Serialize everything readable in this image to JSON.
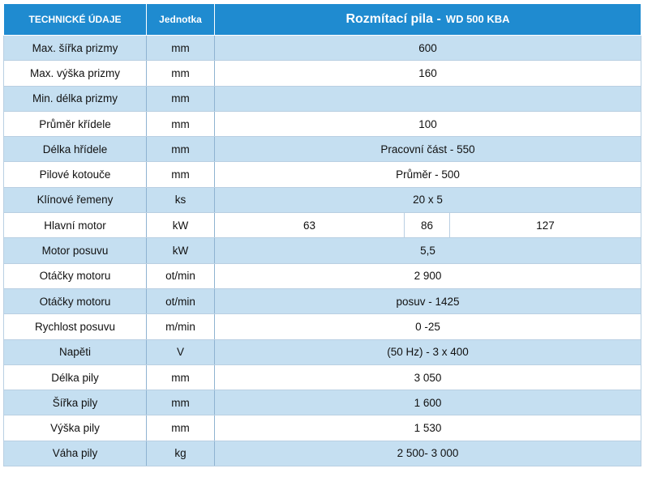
{
  "header": {
    "col_param": "TECHNICKÉ ÚDAJE",
    "col_unit": "Jednotka",
    "col_value_title": "Rozmítací pila -",
    "col_value_model": "WD 500 KBA"
  },
  "rows": [
    {
      "param": "Max. šířka prizmy",
      "unit": "mm",
      "value": "600"
    },
    {
      "param": "Max. výška prizmy",
      "unit": "mm",
      "value": "160"
    },
    {
      "param": "Min. délka prizmy",
      "unit": "mm",
      "value": ""
    },
    {
      "param": "Průměr křídele",
      "unit": "mm",
      "value": "100"
    },
    {
      "param": "Délka hřídele",
      "unit": "mm",
      "value": "Pracovní  část  - 550"
    },
    {
      "param": "Pilové kotouče",
      "unit": "mm",
      "value": "Průměr  - 500"
    },
    {
      "param": "Klínové řemeny",
      "unit": "ks",
      "value": "20 x 5"
    },
    {
      "param": "Hlavní motor",
      "unit": "kW",
      "values": [
        "63",
        "86",
        "127"
      ]
    },
    {
      "param": "Motor posuvu",
      "unit": "kW",
      "value": "5,5"
    },
    {
      "param": "Otáčky motoru",
      "unit": "ot/min",
      "value": "2 900"
    },
    {
      "param": "Otáčky  motoru",
      "unit": "ot/min",
      "value": "posuv - 1425"
    },
    {
      "param": "Rychlost posuvu",
      "unit": "m/min",
      "value": "0 -25"
    },
    {
      "param": "Napěti",
      "unit": "V",
      "value": "(50 Hz) - 3 x 400"
    },
    {
      "param": "Délka pily",
      "unit": "mm",
      "value": "3 050"
    },
    {
      "param": "Šířka pily",
      "unit": "mm",
      "value": "1 600"
    },
    {
      "param": "Výška pily",
      "unit": "mm",
      "value": "1 530"
    },
    {
      "param": "Váha pily",
      "unit": "kg",
      "value": "2 500- 3 000"
    }
  ],
  "colors": {
    "header_bg": "#1f8bd0",
    "row_alt_bg": "#c5dff1",
    "row_bg": "#ffffff"
  }
}
